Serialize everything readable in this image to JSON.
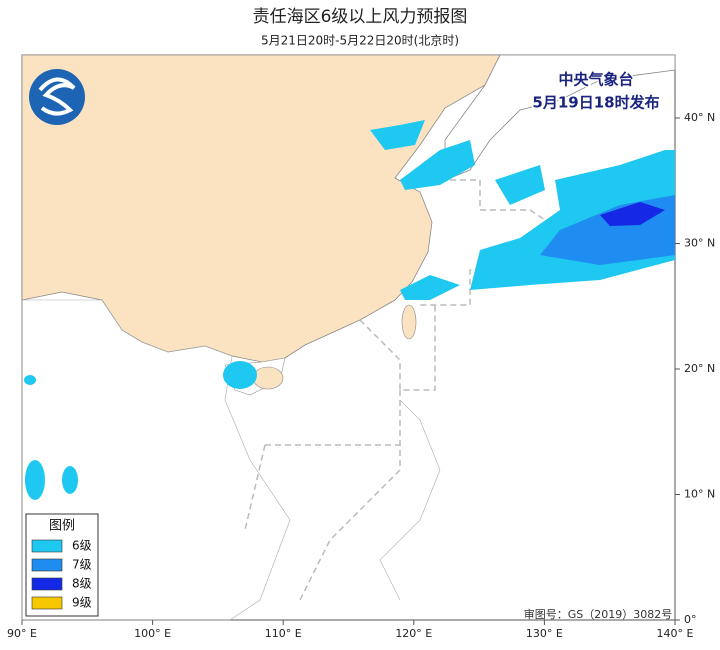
{
  "header": {
    "title": "责任海区6级以上风力预报图",
    "subtitle": "5月21日20时-5月22日20时(北京时)"
  },
  "issuer": {
    "name": "中央气象台",
    "time": "5月19日18时发布"
  },
  "legend": {
    "title": "图例",
    "items": [
      {
        "label": "6级",
        "color": "#1ec8f0"
      },
      {
        "label": "7级",
        "color": "#1e8cf0"
      },
      {
        "label": "8级",
        "color": "#1428e6"
      },
      {
        "label": "9级",
        "color": "#f5c800"
      }
    ]
  },
  "axes": {
    "lon_ticks": [
      {
        "value": 90,
        "label": "90° E"
      },
      {
        "value": 100,
        "label": "100° E"
      },
      {
        "value": 110,
        "label": "110° E"
      },
      {
        "value": 120,
        "label": "120° E"
      },
      {
        "value": 130,
        "label": "130° E"
      },
      {
        "value": 140,
        "label": "140° E"
      }
    ],
    "lat_ticks": [
      {
        "value": 40,
        "label": "40° N"
      },
      {
        "value": 30,
        "label": "30° N"
      },
      {
        "value": 20,
        "label": "20° N"
      },
      {
        "value": 10,
        "label": "10° N"
      },
      {
        "value": 0,
        "label": "0°"
      }
    ]
  },
  "footer": {
    "approval": "审图号：GS（2019）3082号"
  }
}
